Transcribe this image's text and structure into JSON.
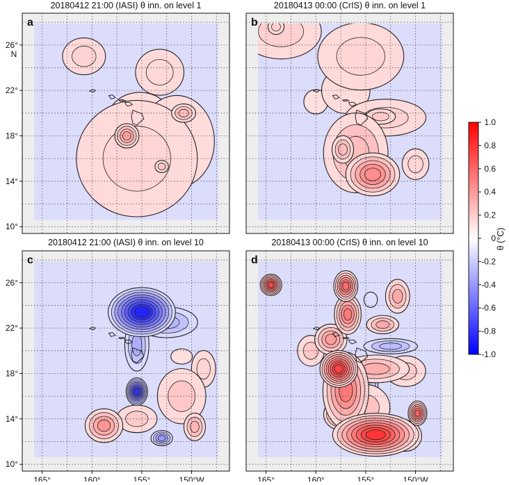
{
  "chart_data": {
    "type": "heatmap",
    "colorbar": {
      "label": "θ (°C)",
      "range": [
        -1.0,
        1.0
      ],
      "ticks": [
        -1.0,
        -0.8,
        -0.6,
        -0.4,
        -0.2,
        0,
        0.2,
        0.4,
        0.6,
        0.8,
        1.0
      ],
      "tick_labels": [
        "-1.0",
        "-0.8",
        "-0.6",
        "-0.4",
        "-0.2",
        "0",
        "0.2",
        "0.4",
        "0.6",
        "0.8",
        "1.0"
      ],
      "colors": {
        "low": "#0000ff",
        "mid": "#ffffff",
        "high": "#ff0000"
      }
    },
    "lon_ticks": [
      -165,
      -160,
      -155,
      -150
    ],
    "lon_tick_labels": [
      "165°",
      "160°",
      "155°",
      "150°W"
    ],
    "lat_ticks": [
      10,
      14,
      18,
      22,
      26
    ],
    "lat_tick_labels": [
      "10°",
      "14°",
      "18°",
      "22°",
      "26°"
    ],
    "lat_unit_label": "N",
    "panels": [
      {
        "id": "a",
        "title": "20180412 21:00 (IASI) θ inn. on level 1",
        "blobs": [
          {
            "lon": -160.8,
            "lat": 25.0,
            "rx": 1.6,
            "ry": 1.2,
            "amp": 0.13
          },
          {
            "lon": -153.2,
            "lat": 23.6,
            "rx": 1.8,
            "ry": 1.5,
            "amp": 0.11
          },
          {
            "lon": -155.2,
            "lat": 19.4,
            "rx": 2.4,
            "ry": 1.8,
            "amp": 0.09
          },
          {
            "lon": -155.5,
            "lat": 16.0,
            "rx": 4.5,
            "ry": 3.8,
            "amp": 0.12
          },
          {
            "lon": -151.5,
            "lat": 17.5,
            "rx": 2.8,
            "ry": 3.0,
            "amp": 0.09
          },
          {
            "lon": -156.5,
            "lat": 18.0,
            "rx": 0.9,
            "ry": 0.8,
            "amp": 0.33
          },
          {
            "lon": -150.8,
            "lat": 20.0,
            "rx": 0.9,
            "ry": 0.6,
            "amp": 0.22
          },
          {
            "lon": -153.0,
            "lat": 15.3,
            "rx": 0.5,
            "ry": 0.4,
            "amp": 0.18
          },
          {
            "lon": -158.5,
            "lat": 15.5,
            "rx": 0.5,
            "ry": 0.4,
            "amp": -0.1
          }
        ]
      },
      {
        "id": "b",
        "title": "20180413 00:00 (CrIS) θ inn. on level 1",
        "blobs": [
          {
            "lon": -163.5,
            "lat": 27.2,
            "rx": 3.0,
            "ry": 1.8,
            "amp": 0.14
          },
          {
            "lon": -155.5,
            "lat": 25.0,
            "rx": 3.2,
            "ry": 2.2,
            "amp": 0.12
          },
          {
            "lon": -157.0,
            "lat": 22.0,
            "rx": 1.8,
            "ry": 1.5,
            "amp": 0.09
          },
          {
            "lon": -153.0,
            "lat": 19.6,
            "rx": 3.0,
            "ry": 1.2,
            "amp": 0.14
          },
          {
            "lon": -156.0,
            "lat": 16.5,
            "rx": 2.4,
            "ry": 2.6,
            "amp": 0.22
          },
          {
            "lon": -154.3,
            "lat": 14.6,
            "rx": 2.0,
            "ry": 1.4,
            "amp": 0.42
          },
          {
            "lon": -157.3,
            "lat": 16.8,
            "rx": 0.8,
            "ry": 0.9,
            "amp": 0.22
          },
          {
            "lon": -153.5,
            "lat": 19.7,
            "rx": 1.1,
            "ry": 0.5,
            "amp": 0.17
          },
          {
            "lon": -164.0,
            "lat": 27.6,
            "rx": 0.6,
            "ry": 0.5,
            "amp": 0.15
          },
          {
            "lon": -150.0,
            "lat": 15.5,
            "rx": 1.0,
            "ry": 1.0,
            "amp": 0.12
          },
          {
            "lon": -160.0,
            "lat": 21.0,
            "rx": 0.9,
            "ry": 0.8,
            "amp": 0.08
          }
        ]
      },
      {
        "id": "c",
        "title": "20180412 21:00 (IASI) θ inn. on level 10",
        "blobs": [
          {
            "lon": -155.0,
            "lat": 23.4,
            "rx": 2.5,
            "ry": 1.6,
            "amp": -0.85
          },
          {
            "lon": -155.5,
            "lat": 20.5,
            "rx": 0.9,
            "ry": 1.7,
            "amp": -0.28
          },
          {
            "lon": -152.5,
            "lat": 22.5,
            "rx": 2.3,
            "ry": 1.0,
            "amp": -0.25
          },
          {
            "lon": -155.5,
            "lat": 16.4,
            "rx": 0.8,
            "ry": 0.9,
            "amp": -0.8
          },
          {
            "lon": -158.8,
            "lat": 13.4,
            "rx": 1.4,
            "ry": 1.1,
            "amp": 0.38
          },
          {
            "lon": -151.0,
            "lat": 16.0,
            "rx": 1.8,
            "ry": 1.8,
            "amp": 0.18
          },
          {
            "lon": -153.0,
            "lat": 12.3,
            "rx": 0.8,
            "ry": 0.5,
            "amp": -0.35
          },
          {
            "lon": -155.5,
            "lat": 14.0,
            "rx": 1.5,
            "ry": 0.9,
            "amp": 0.16
          },
          {
            "lon": -149.7,
            "lat": 13.3,
            "rx": 0.8,
            "ry": 0.9,
            "amp": 0.25
          },
          {
            "lon": -148.8,
            "lat": 18.4,
            "rx": 0.9,
            "ry": 1.2,
            "amp": 0.12
          },
          {
            "lon": -151.0,
            "lat": 19.5,
            "rx": 0.8,
            "ry": 0.5,
            "amp": 0.08
          }
        ]
      },
      {
        "id": "d",
        "title": "20180413 00:00 (CrIS) θ inn. on level 10",
        "blobs": [
          {
            "lon": -164.5,
            "lat": 25.8,
            "rx": 0.8,
            "ry": 0.7,
            "amp": 0.7
          },
          {
            "lon": -157.0,
            "lat": 25.7,
            "rx": 0.9,
            "ry": 1.0,
            "amp": 0.55
          },
          {
            "lon": -156.8,
            "lat": 23.2,
            "rx": 1.0,
            "ry": 1.3,
            "amp": 0.5
          },
          {
            "lon": -158.5,
            "lat": 21.0,
            "rx": 1.2,
            "ry": 1.0,
            "amp": 0.35
          },
          {
            "lon": -157.7,
            "lat": 18.4,
            "rx": 1.4,
            "ry": 1.2,
            "amp": 0.72
          },
          {
            "lon": -157.0,
            "lat": 16.5,
            "rx": 1.7,
            "ry": 2.5,
            "amp": 0.5
          },
          {
            "lon": -157.6,
            "lat": 14.4,
            "rx": 1.2,
            "ry": 1.0,
            "amp": 0.45
          },
          {
            "lon": -154.0,
            "lat": 12.6,
            "rx": 3.2,
            "ry": 1.4,
            "amp": 0.78
          },
          {
            "lon": -151.0,
            "lat": 12.5,
            "rx": 1.2,
            "ry": 1.0,
            "amp": 0.28
          },
          {
            "lon": -149.8,
            "lat": 14.5,
            "rx": 0.7,
            "ry": 0.8,
            "amp": 0.6
          },
          {
            "lon": -154.0,
            "lat": 18.4,
            "rx": 2.5,
            "ry": 0.9,
            "amp": 0.28
          },
          {
            "lon": -151.0,
            "lat": 18.2,
            "rx": 1.5,
            "ry": 1.0,
            "amp": 0.16
          },
          {
            "lon": -153.3,
            "lat": 22.3,
            "rx": 1.2,
            "ry": 0.6,
            "amp": 0.3
          },
          {
            "lon": -151.8,
            "lat": 24.8,
            "rx": 0.9,
            "ry": 1.1,
            "amp": 0.3
          },
          {
            "lon": -160.5,
            "lat": 20.0,
            "rx": 1.0,
            "ry": 1.0,
            "amp": 0.18
          },
          {
            "lon": -152.5,
            "lat": 20.4,
            "rx": 2.0,
            "ry": 0.5,
            "amp": -0.22
          },
          {
            "lon": -154.3,
            "lat": 17.0,
            "rx": 0.4,
            "ry": 0.8,
            "amp": -0.2
          },
          {
            "lon": -154.5,
            "lat": 24.5,
            "rx": 0.5,
            "ry": 0.5,
            "amp": -0.08
          },
          {
            "lon": -155.0,
            "lat": 15.0,
            "rx": 1.8,
            "ry": 1.5,
            "amp": 0.2
          }
        ]
      }
    ]
  }
}
